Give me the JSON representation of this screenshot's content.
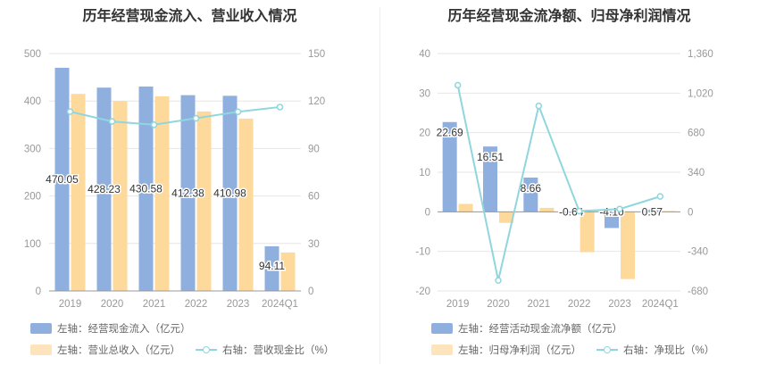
{
  "chart_data": [
    {
      "type": "bar",
      "title": "历年经营现金流入、营业收入情况",
      "categories": [
        "2019",
        "2020",
        "2021",
        "2022",
        "2023",
        "2024Q1"
      ],
      "y_left": {
        "min": 0,
        "max": 500,
        "ticks": [
          "0",
          "100",
          "200",
          "300",
          "400",
          "500"
        ]
      },
      "y_right": {
        "min": 0,
        "max": 150,
        "ticks": [
          "0",
          "30",
          "60",
          "90",
          "120",
          "150"
        ]
      },
      "series": [
        {
          "name": "左轴：经营现金流入（亿元）",
          "kind": "bar",
          "axis": "left",
          "color": "#8fb0de",
          "values": [
            470.05,
            428.23,
            430.58,
            412.38,
            410.98,
            94.11
          ],
          "labels": [
            "470.05",
            "428.23",
            "430.58",
            "412.38",
            "410.98",
            "94.11"
          ]
        },
        {
          "name": "左轴：营业总收入（亿元）",
          "kind": "bar",
          "axis": "left",
          "color": "#fdd99b",
          "values": [
            415,
            400,
            410,
            378,
            363,
            81
          ]
        },
        {
          "name": "右轴：营收现金比（%）",
          "kind": "line",
          "axis": "right",
          "color": "#8fd6dd",
          "values": [
            113.3,
            107.1,
            105.0,
            109.1,
            113.2,
            116.2
          ]
        }
      ]
    },
    {
      "type": "bar",
      "title": "历年经营现金流净额、归母净利润情况",
      "categories": [
        "2019",
        "2020",
        "2021",
        "2022",
        "2023",
        "2024Q1"
      ],
      "y_left": {
        "min": -20,
        "max": 40,
        "ticks": [
          "-20",
          "-10",
          "0",
          "10",
          "20",
          "30",
          "40"
        ]
      },
      "y_right": {
        "min": -680,
        "max": 1360,
        "ticks": [
          "-680",
          "-340",
          "0",
          "340",
          "680",
          "1,020",
          "1,360"
        ]
      },
      "series": [
        {
          "name": "左轴：经营活动现金流净额（亿元）",
          "kind": "bar",
          "axis": "left",
          "color": "#8fb0de",
          "values": [
            22.69,
            16.51,
            8.66,
            -0.64,
            -4.1,
            0.57
          ],
          "labels": [
            "22.69",
            "16.51",
            "8.66",
            "-0.64",
            "-4.10",
            "0.57"
          ]
        },
        {
          "name": "左轴：归母净利润（亿元）",
          "kind": "bar",
          "axis": "left",
          "color": "#fdd99b",
          "values": [
            2.0,
            -2.8,
            1.0,
            -10.2,
            -17.0,
            0.2
          ]
        },
        {
          "name": "右轴：净现比（%）",
          "kind": "line",
          "axis": "right",
          "color": "#8fd6dd",
          "values": [
            1088,
            -590,
            910,
            6,
            24,
            132
          ]
        }
      ]
    }
  ]
}
